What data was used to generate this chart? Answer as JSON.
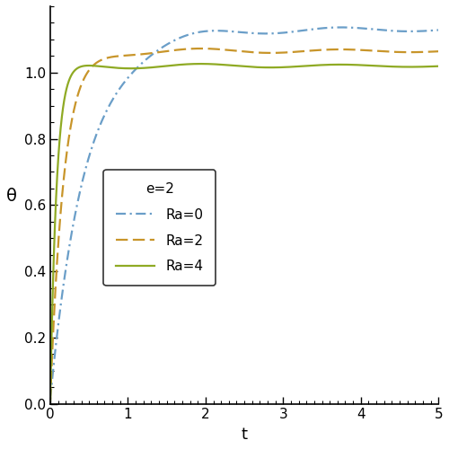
{
  "xlabel": "t",
  "ylabel": "θ",
  "xlim": [
    0,
    5
  ],
  "ylim": [
    0.0,
    1.2
  ],
  "yticks": [
    0.0,
    0.2,
    0.4,
    0.6,
    0.8,
    1.0
  ],
  "xticks": [
    0,
    1,
    2,
    3,
    4,
    5
  ],
  "legend_title": "e=2",
  "legend_entries": [
    "Ra=0",
    "Ra=2",
    "Ra=4"
  ],
  "color_Ra0": "#6a9ec8",
  "color_Ra2": "#c8952a",
  "color_Ra4": "#8faa24",
  "figsize": [
    5.0,
    5.0
  ],
  "dpi": 100,
  "Ra0_rise": 2.0,
  "Ra0_steady": 1.13,
  "Ra0_overshoot": 0.12,
  "Ra0_osc_amp": 0.018,
  "Ra0_osc_freq": 3.5,
  "Ra0_osc_decay": 0.25,
  "Ra2_rise": 5.5,
  "Ra2_steady": 1.065,
  "Ra2_overshoot": 0.055,
  "Ra2_osc_amp": 0.012,
  "Ra2_osc_freq": 3.5,
  "Ra2_osc_decay": 0.25,
  "Ra4_rise": 12.0,
  "Ra4_steady": 1.02,
  "Ra4_overshoot": 0.03,
  "Ra4_osc_amp": 0.01,
  "Ra4_osc_freq": 3.5,
  "Ra4_osc_decay": 0.25
}
